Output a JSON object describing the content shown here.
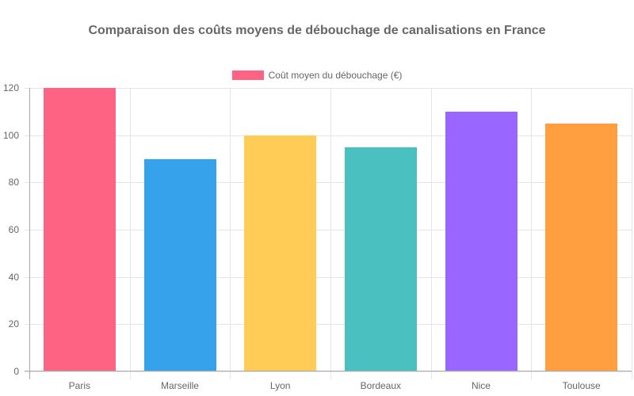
{
  "chart_data": {
    "type": "bar",
    "title": "Comparaison des coûts moyens de débouchage de canalisations en France",
    "xlabel": "",
    "ylabel": "",
    "categories": [
      "Paris",
      "Marseille",
      "Lyon",
      "Bordeaux",
      "Nice",
      "Toulouse"
    ],
    "series": [
      {
        "name": "Coût moyen du débouchage (€)",
        "values": [
          120,
          90,
          100,
          95,
          110,
          105
        ],
        "colors": [
          "#ff6384",
          "#36a2eb",
          "#ffcd56",
          "#4bc0c0",
          "#9966ff",
          "#ff9f40"
        ]
      }
    ],
    "ylim": [
      0,
      120
    ],
    "yticks": [
      0,
      20,
      40,
      60,
      80,
      100,
      120
    ],
    "grid": true,
    "legend_position": "top"
  },
  "title": "Comparaison des coûts moyens de débouchage de canalisations en France",
  "legend": {
    "label": "Coût moyen du débouchage (€)",
    "color": "#ff6384"
  }
}
